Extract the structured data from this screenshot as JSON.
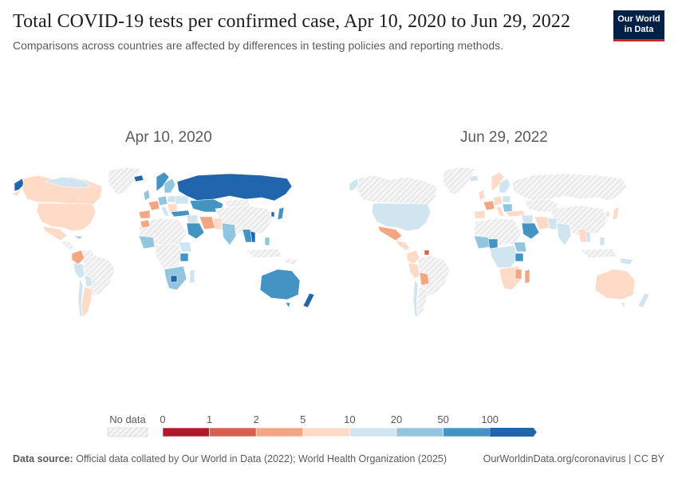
{
  "header": {
    "title": "Total COVID-19 tests per confirmed case, Apr 10, 2020 to Jun 29, 2022",
    "subtitle": "Comparisons across countries are affected by differences in testing policies and reporting methods."
  },
  "logo": {
    "line1": "Our World",
    "line2": "in Data"
  },
  "maps": {
    "left": {
      "date": "Apr 10, 2020"
    },
    "right": {
      "date": "Jun 29, 2022"
    }
  },
  "legend": {
    "no_data_label": "No data",
    "ticks": [
      "0",
      "1",
      "2",
      "5",
      "10",
      "20",
      "50",
      "100"
    ],
    "bins": [
      {
        "from": "0",
        "to": "1",
        "color": "#b2182b"
      },
      {
        "from": "1",
        "to": "2",
        "color": "#d6604d"
      },
      {
        "from": "2",
        "to": "5",
        "color": "#f4a582"
      },
      {
        "from": "5",
        "to": "10",
        "color": "#fddbc7"
      },
      {
        "from": "10",
        "to": "20",
        "color": "#d1e5f0"
      },
      {
        "from": "20",
        "to": "50",
        "color": "#92c5de"
      },
      {
        "from": "50",
        "to": "100",
        "color": "#4393c3"
      },
      {
        "from": "100",
        "to": "",
        "color": "#2166ac"
      }
    ]
  },
  "colors": {
    "land_nodata": "#ebebeb",
    "border": "#ffffff",
    "brand_navy": "#002147",
    "brand_red": "#ce261e"
  },
  "footer": {
    "source_label": "Data source:",
    "source_text": "Official data collated by Our World in Data (2022); World Health Organization (2025)",
    "url_text": "OurWorldinData.org/coronavirus | CC BY"
  }
}
